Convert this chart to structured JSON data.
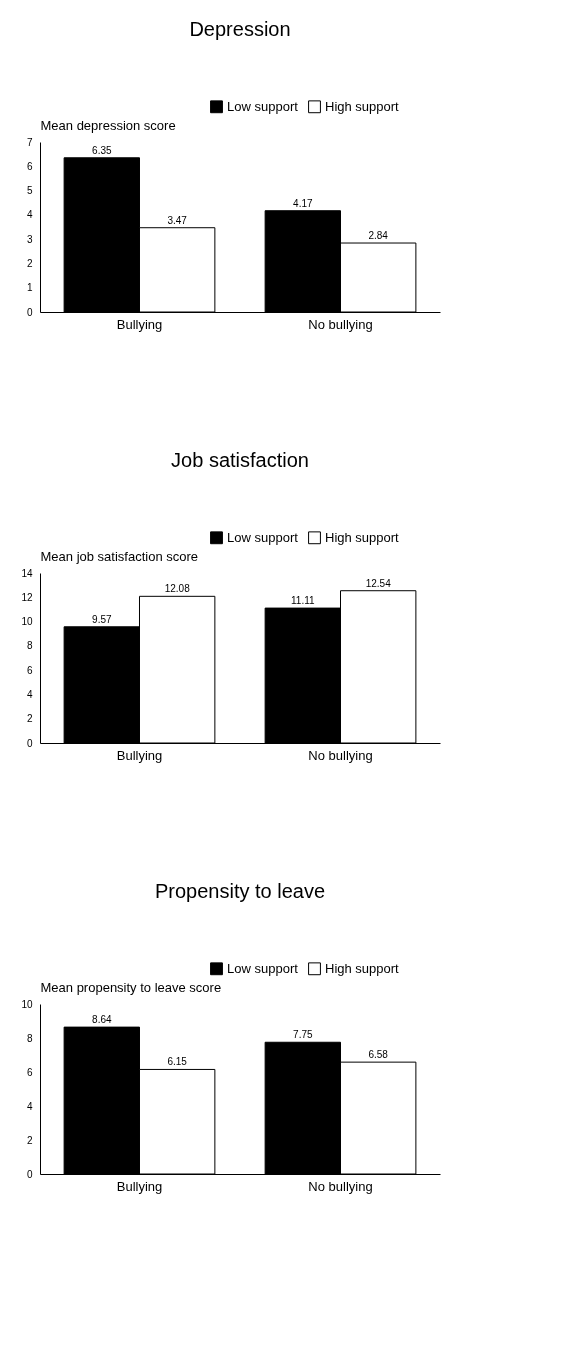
{
  "chart_data": [
    {
      "type": "bar",
      "title": "Depression",
      "ylabel": "Mean depression score",
      "categories": [
        "Bullying",
        "No bullying"
      ],
      "series": [
        {
          "name": "Low support",
          "color": "#000000",
          "values": [
            6.35,
            4.17
          ]
        },
        {
          "name": "High support",
          "color": "#ffffff",
          "values": [
            3.47,
            2.84
          ]
        }
      ],
      "ylim": [
        0,
        7
      ],
      "yticks": [
        0,
        1,
        2,
        3,
        4,
        5,
        6,
        7
      ],
      "data_labels": true,
      "legend": "top right",
      "grid": false
    },
    {
      "type": "bar",
      "title": "Job satisfaction",
      "ylabel": "Mean job satisfaction score",
      "categories": [
        "Bullying",
        "No bullying"
      ],
      "series": [
        {
          "name": "Low support",
          "color": "#000000",
          "values": [
            9.57,
            11.11
          ]
        },
        {
          "name": "High support",
          "color": "#ffffff",
          "values": [
            12.08,
            12.54
          ]
        }
      ],
      "ylim": [
        0,
        14
      ],
      "yticks": [
        0,
        2,
        4,
        6,
        8,
        10,
        12,
        14
      ],
      "data_labels": true,
      "legend": "top right",
      "grid": false
    },
    {
      "type": "bar",
      "title": "Propensity to leave",
      "ylabel": "Mean propensity to leave score",
      "categories": [
        "Bullying",
        "No bullying"
      ],
      "series": [
        {
          "name": "Low support",
          "color": "#000000",
          "values": [
            8.64,
            7.75
          ]
        },
        {
          "name": "High support",
          "color": "#ffffff",
          "values": [
            6.15,
            6.58
          ]
        }
      ],
      "ylim": [
        0,
        10
      ],
      "yticks": [
        0,
        2,
        4,
        6,
        8,
        10
      ],
      "data_labels": true,
      "legend": "top right",
      "grid": false
    }
  ]
}
